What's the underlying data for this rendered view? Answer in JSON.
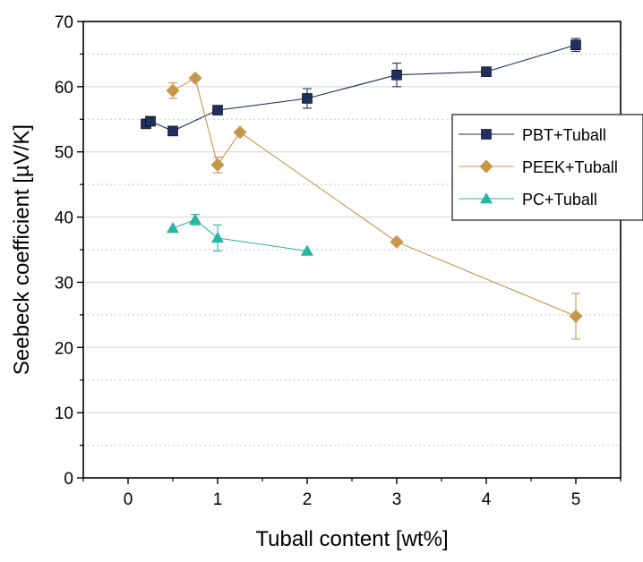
{
  "chart_data": {
    "type": "scatter",
    "xlabel": "Tuball content [wt%]",
    "ylabel": "Seebeck coefficient [µV/K]",
    "xlim": [
      -0.5,
      5.5
    ],
    "ylim": [
      0,
      70
    ],
    "xticks": [
      0,
      1,
      2,
      3,
      4,
      5
    ],
    "yticks": [
      0,
      10,
      20,
      30,
      40,
      50,
      60,
      70
    ],
    "xtick_labels": [
      "0",
      "1",
      "2",
      "3",
      "4",
      "5"
    ],
    "ytick_labels": [
      "0",
      "10",
      "20",
      "30",
      "40",
      "50",
      "60",
      "70"
    ],
    "grid": "horizontal dotted",
    "legend_position": "right",
    "series": [
      {
        "name": "PBT+Tuball",
        "color": "#1f2f5e",
        "marker": "square",
        "line": true,
        "x": [
          0.2,
          0.25,
          0.5,
          1,
          2,
          3,
          4,
          5
        ],
        "y": [
          54.3,
          54.7,
          53.2,
          56.4,
          58.2,
          61.8,
          62.3,
          66.4
        ],
        "error": [
          0,
          0,
          0,
          0,
          1.5,
          1.8,
          0,
          1.0
        ]
      },
      {
        "name": "PEEK+Tuball",
        "color": "#c9954a",
        "marker": "diamond",
        "line": true,
        "x": [
          0.5,
          0.75,
          1,
          1.25,
          3,
          5
        ],
        "y": [
          59.4,
          61.3,
          48.0,
          53.0,
          36.2,
          24.8
        ],
        "error": [
          1.2,
          0,
          1.2,
          0,
          0,
          3.5
        ]
      },
      {
        "name": "PC+Tuball",
        "color": "#2ab5a0",
        "marker": "triangle",
        "line": true,
        "x": [
          0.5,
          0.75,
          1,
          2
        ],
        "y": [
          38.3,
          39.6,
          36.8,
          34.8
        ],
        "error": [
          0,
          0.8,
          2.0,
          0
        ]
      }
    ]
  }
}
